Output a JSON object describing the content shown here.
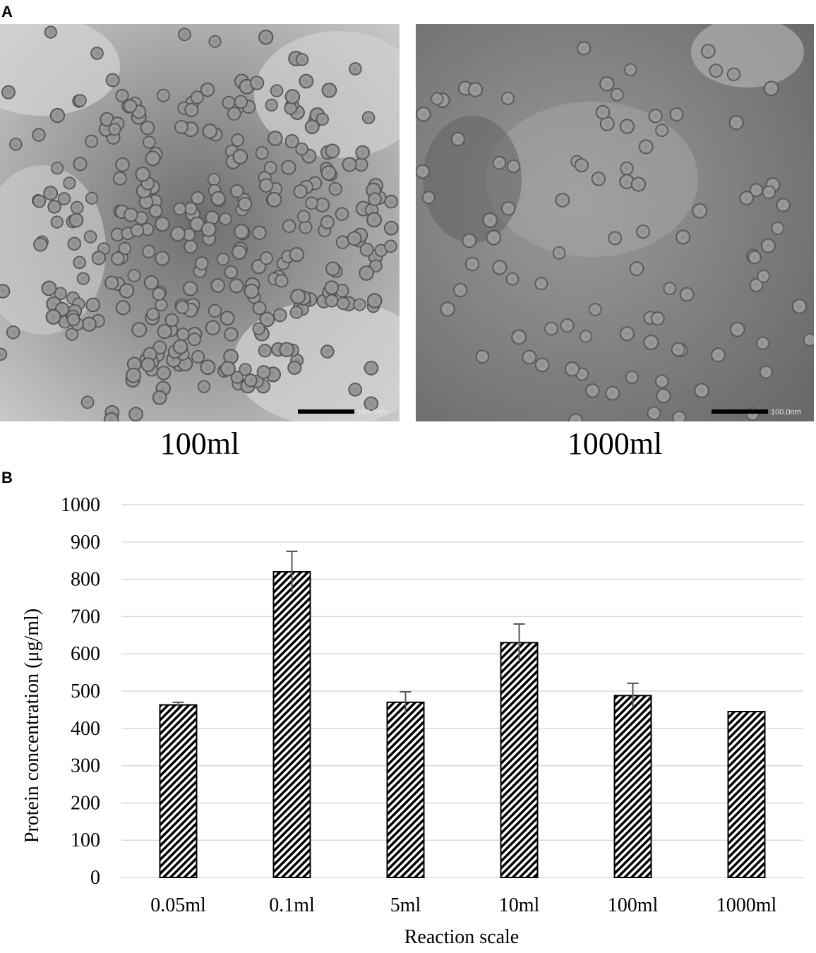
{
  "panels": {
    "a_label": "A",
    "b_label": "B"
  },
  "em_images": [
    {
      "caption": "100ml",
      "scale_bar_text": "100.0nm"
    },
    {
      "caption": "1000ml",
      "scale_bar_text": "100.0nm"
    }
  ],
  "chart_data": {
    "type": "bar",
    "categories": [
      "0.05ml",
      "0.1ml",
      "5ml",
      "10ml",
      "100ml",
      "1000ml"
    ],
    "values": [
      463,
      820,
      470,
      630,
      488,
      445
    ],
    "error": [
      7,
      55,
      28,
      50,
      33,
      0
    ],
    "xlabel": "Reaction scale",
    "ylabel": "Protein concentration (μg/ml)",
    "ylim": [
      0,
      1000
    ],
    "yticks": [
      0,
      100,
      200,
      300,
      400,
      500,
      600,
      700,
      800,
      900,
      1000
    ],
    "grid": true,
    "bar_fill": "diagonal-hatch",
    "colors": {
      "bar_stroke": "#000000",
      "grid": "#d9d9d9",
      "error_bar": "#555555"
    }
  }
}
